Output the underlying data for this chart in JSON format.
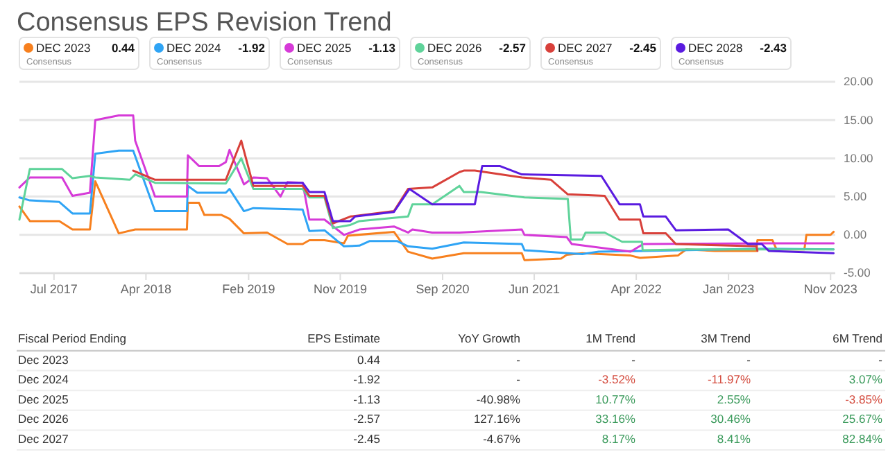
{
  "chart_data": {
    "type": "line",
    "title": "Consensus EPS Revision Trend",
    "xlim": [
      "2017-03-20",
      "2023-11-15"
    ],
    "xticks": [
      {
        "value": "2017-07-01",
        "label": "Jul 2017"
      },
      {
        "value": "2018-04-01",
        "label": "Apr 2018"
      },
      {
        "value": "2019-02-01",
        "label": "Feb 2019"
      },
      {
        "value": "2019-11-01",
        "label": "Nov 2019"
      },
      {
        "value": "2020-09-01",
        "label": "Sep 2020"
      },
      {
        "value": "2021-06-01",
        "label": "Jun 2021"
      },
      {
        "value": "2022-04-01",
        "label": "Apr 2022"
      },
      {
        "value": "2023-01-01",
        "label": "Jan 2023"
      },
      {
        "value": "2023-11-01",
        "label": "Nov 2023"
      }
    ],
    "ylim": [
      -5,
      20
    ],
    "yticks": [
      {
        "value": -5,
        "label": "-5.00"
      },
      {
        "value": 0,
        "label": "0.00"
      },
      {
        "value": 5,
        "label": "5.00"
      },
      {
        "value": 10,
        "label": "10.00"
      },
      {
        "value": 15,
        "label": "15.00"
      },
      {
        "value": 20,
        "label": "20.00"
      }
    ],
    "grid": "y",
    "legend": "top",
    "marker": "none",
    "line_style": "solid",
    "series": [
      {
        "name": "DEC 2023",
        "color": "#f7801e",
        "x": [
          "2017-03-20",
          "2017-04-20",
          "2017-07-17",
          "2017-08-25",
          "2017-10-16",
          "2017-11-01",
          "2018-01-10",
          "2018-02-28",
          "2018-08-01",
          "2018-08-04",
          "2018-09-06",
          "2018-09-22",
          "2018-11-12",
          "2018-12-06",
          "2019-01-18",
          "2019-03-28",
          "2019-05-28",
          "2019-07-12",
          "2019-08-01",
          "2019-09-15",
          "2019-11-12",
          "2019-11-24",
          "2020-04-09",
          "2020-05-21",
          "2020-08-01",
          "2020-11-03",
          "2021-04-25",
          "2021-05-03",
          "2021-08-20",
          "2021-09-06",
          "2021-10-22",
          "2022-03-15",
          "2022-04-12",
          "2022-08-03",
          "2022-08-28",
          "2022-11-21",
          "2023-03-25",
          "2023-03-28",
          "2023-05-12",
          "2023-05-24",
          "2023-08-15",
          "2023-08-21",
          "2023-11-01",
          "2023-11-10"
        ],
        "values": [
          3.7,
          1.8,
          1.8,
          0.7,
          0.7,
          7.0,
          0.2,
          0.7,
          0.7,
          4.2,
          4.2,
          2.6,
          2.6,
          2.1,
          0.2,
          0.3,
          -1.2,
          -1.2,
          -0.7,
          -0.7,
          -1.1,
          -0.1,
          0.4,
          -2.2,
          -3.1,
          -2.4,
          -2.4,
          -3.3,
          -3.1,
          -2.6,
          -2.4,
          -2.7,
          -3.0,
          -2.7,
          -1.9,
          -2.1,
          -2.1,
          -0.7,
          -0.7,
          -1.9,
          -1.9,
          0.0,
          0.0,
          0.4
        ]
      },
      {
        "name": "DEC 2024",
        "color": "#2fa4f5",
        "x": [
          "2017-03-20",
          "2017-04-20",
          "2017-07-17",
          "2017-08-25",
          "2017-10-16",
          "2017-11-01",
          "2018-01-10",
          "2018-02-22",
          "2018-04-28",
          "2018-08-01",
          "2018-08-04",
          "2018-09-01",
          "2018-11-25",
          "2018-12-06",
          "2019-01-18",
          "2019-02-15",
          "2019-07-12",
          "2019-08-01",
          "2019-09-15",
          "2019-11-12",
          "2019-12-28",
          "2020-01-28",
          "2020-04-18",
          "2020-05-21",
          "2020-08-01",
          "2020-11-03",
          "2021-04-25",
          "2021-05-03",
          "2021-09-09",
          "2021-10-22",
          "2021-12-10",
          "2022-04-22",
          "2023-04-15",
          "2023-11-10"
        ],
        "values": [
          4.9,
          4.5,
          4.3,
          2.8,
          2.8,
          10.6,
          11.0,
          11.0,
          3.1,
          3.1,
          6.4,
          5.5,
          5.5,
          6.0,
          3.1,
          3.5,
          3.3,
          0.5,
          0.6,
          -1.5,
          -1.4,
          -0.8,
          -0.8,
          -1.5,
          -1.8,
          -1.0,
          -1.2,
          -2.0,
          -2.4,
          -2.5,
          -2.2,
          -2.1,
          -1.8,
          -1.9
        ]
      },
      {
        "name": "DEC 2025",
        "color": "#d63ad8",
        "x": [
          "2017-03-20",
          "2017-04-20",
          "2017-07-25",
          "2017-08-25",
          "2017-10-16",
          "2017-11-01",
          "2018-01-10",
          "2018-02-22",
          "2018-02-28",
          "2018-04-28",
          "2018-08-01",
          "2018-08-04",
          "2018-09-06",
          "2018-11-05",
          "2018-11-25",
          "2018-12-06",
          "2019-01-18",
          "2019-02-15",
          "2019-03-28",
          "2019-05-07",
          "2019-05-28",
          "2019-07-12",
          "2019-08-01",
          "2019-09-15",
          "2019-11-12",
          "2019-12-28",
          "2020-04-09",
          "2020-05-21",
          "2020-06-03",
          "2020-08-01",
          "2020-10-21",
          "2021-04-25",
          "2021-05-03",
          "2021-09-06",
          "2021-09-21",
          "2022-03-15",
          "2022-04-22",
          "2023-04-15",
          "2023-11-10"
        ],
        "values": [
          6.2,
          7.5,
          7.5,
          5.1,
          5.5,
          15.0,
          15.6,
          15.6,
          12.3,
          5.0,
          5.0,
          10.4,
          9.0,
          9.0,
          9.5,
          11.1,
          6.6,
          7.5,
          7.4,
          5.0,
          6.9,
          6.8,
          2.0,
          2.0,
          0.0,
          0.7,
          1.1,
          0.3,
          0.7,
          0.3,
          0.3,
          0.7,
          0.0,
          -0.3,
          -1.2,
          -2.2,
          -1.2,
          -1.1,
          -1.1
        ]
      },
      {
        "name": "DEC 2026",
        "color": "#5fd39a",
        "x": [
          "2017-03-20",
          "2017-04-20",
          "2017-07-25",
          "2017-08-25",
          "2017-10-16",
          "2017-11-01",
          "2018-02-12",
          "2018-02-28",
          "2018-04-28",
          "2018-11-25",
          "2019-01-10",
          "2019-02-15",
          "2019-07-12",
          "2019-08-01",
          "2019-09-15",
          "2019-10-10",
          "2019-12-01",
          "2019-12-28",
          "2020-05-21",
          "2020-06-03",
          "2020-08-01",
          "2020-10-21",
          "2020-11-03",
          "2020-12-24",
          "2021-05-03",
          "2021-09-09",
          "2021-09-18",
          "2021-10-22",
          "2021-11-01",
          "2021-12-28",
          "2022-02-18",
          "2022-04-18",
          "2022-04-20",
          "2022-08-28",
          "2023-11-10"
        ],
        "values": [
          2.0,
          8.6,
          8.6,
          7.4,
          7.7,
          7.5,
          7.2,
          7.9,
          6.8,
          6.7,
          10.0,
          6.0,
          6.0,
          4.9,
          4.9,
          0.9,
          1.3,
          1.8,
          2.4,
          4.0,
          4.0,
          6.4,
          5.6,
          5.6,
          4.9,
          4.7,
          -0.6,
          -0.6,
          0.3,
          0.3,
          -0.9,
          -0.9,
          -2.0,
          -1.9,
          -1.9
        ]
      },
      {
        "name": "DEC 2027",
        "color": "#d8403a",
        "x": [
          "2018-02-22",
          "2018-04-28",
          "2018-11-25",
          "2019-01-10",
          "2019-02-15",
          "2019-07-12",
          "2019-08-01",
          "2019-09-15",
          "2019-10-10",
          "2019-12-01",
          "2020-04-09",
          "2020-05-21",
          "2020-08-01",
          "2020-10-21",
          "2020-11-03",
          "2020-12-06",
          "2021-04-25",
          "2021-07-21",
          "2021-09-09",
          "2021-12-28",
          "2022-02-10",
          "2022-04-12",
          "2022-04-22",
          "2022-06-28",
          "2022-07-28",
          "2023-03-25",
          "2023-03-28"
        ],
        "values": [
          8.4,
          7.2,
          7.2,
          12.3,
          6.4,
          6.4,
          5.1,
          5.1,
          1.5,
          2.4,
          3.1,
          6.0,
          6.2,
          8.2,
          8.4,
          8.4,
          7.5,
          7.2,
          5.3,
          5.1,
          2.0,
          2.0,
          0.2,
          0.2,
          -1.2,
          -1.5,
          -2.1
        ]
      },
      {
        "name": "DEC 2028",
        "color": "#5a1be0",
        "x": [
          "2019-02-15",
          "2019-07-12",
          "2019-08-01",
          "2019-09-15",
          "2019-10-10",
          "2019-12-01",
          "2019-12-15",
          "2020-04-09",
          "2020-05-25",
          "2020-08-01",
          "2020-10-21",
          "2020-12-06",
          "2020-12-28",
          "2021-02-18",
          "2021-04-25",
          "2021-12-18",
          "2022-02-10",
          "2022-04-12",
          "2022-04-22",
          "2022-06-28",
          "2022-07-28",
          "2022-12-31",
          "2023-02-28",
          "2023-04-10",
          "2023-05-01",
          "2023-11-10"
        ],
        "values": [
          6.8,
          6.8,
          5.6,
          5.6,
          1.8,
          1.8,
          2.4,
          3.0,
          6.0,
          4.0,
          4.0,
          4.0,
          9.0,
          9.0,
          7.9,
          7.7,
          4.0,
          4.0,
          2.4,
          2.4,
          0.6,
          0.7,
          -1.2,
          -1.2,
          -2.1,
          -2.4
        ]
      }
    ],
    "annotations": [
      "0.44",
      "-1.92",
      "-1.13",
      "-2.57",
      "-2.45",
      "-2.43",
      "Consensus",
      "Consensus",
      "Consensus",
      "Consensus",
      "Consensus",
      "Consensus",
      "Fiscal Period Ending",
      "EPS Estimate",
      "YoY Growth",
      "1M Trend",
      "3M Trend",
      "6M Trend",
      "Dec 2023",
      "0.44",
      "-",
      "-",
      "-",
      "-",
      "Dec 2024",
      "-1.92",
      "-",
      "-3.52%",
      "-11.97%",
      "3.07%",
      "Dec 2025",
      "-1.13",
      "-40.98%",
      "10.77%",
      "2.55%",
      "-3.85%",
      "Dec 2026",
      "-2.57",
      "127.16%",
      "33.16%",
      "30.46%",
      "25.67%",
      "Dec 2027",
      "-2.45",
      "-4.67%",
      "8.17%",
      "8.41%",
      "82.84%"
    ]
  }
}
